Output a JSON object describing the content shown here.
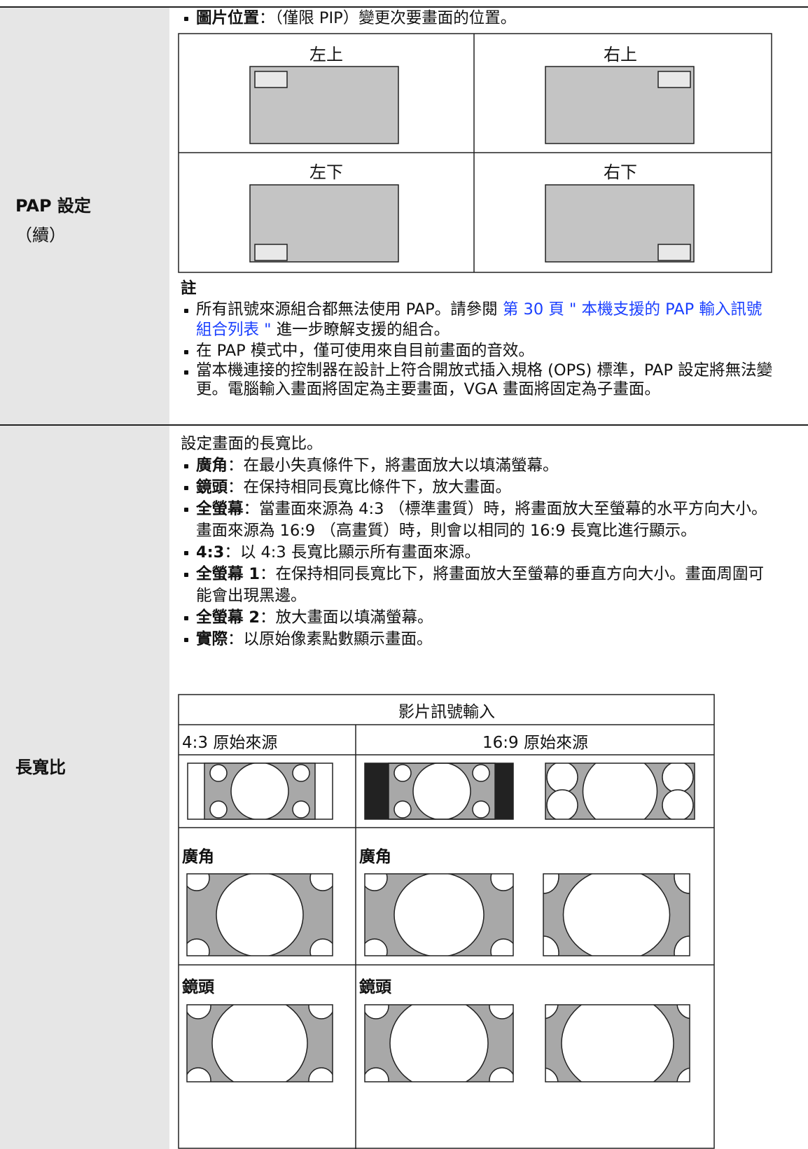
{
  "pap": {
    "label": "PAP 設定",
    "label_cont": "（續）",
    "item": {
      "term": "圖片位置",
      "text": "：（僅限 PIP）變更次要畫面的位置。"
    },
    "positions": [
      "左上",
      "右上",
      "左下",
      "右下"
    ],
    "note_title": "註",
    "notes": [
      {
        "before": "所有訊號來源組合都無法使用 PAP。請參閱 ",
        "link": "第 30 頁 \" 本機支援的 PAP 輸入訊號組合列表 \"",
        "after": " 進一步瞭解支援的組合。"
      },
      {
        "before": "在 PAP 模式中，僅可使用來自目前畫面的音效。"
      },
      {
        "before": "當本機連接的控制器在設計上符合開放式插入規格 (OPS) 標準，PAP 設定將無法變更。電腦輸入畫面將固定為主要畫面，VGA 畫面將固定為子畫面。"
      }
    ]
  },
  "aspect": {
    "label": "長寬比",
    "intro": "設定畫面的長寬比。",
    "items": [
      {
        "term": "廣角",
        "text": "：在最小失真條件下，將畫面放大以填滿螢幕。"
      },
      {
        "term": "鏡頭",
        "text": "：在保持相同長寬比條件下，放大畫面。"
      },
      {
        "term": "全螢幕",
        "text": "：當畫面來源為 4:3 （標準畫質）時，將畫面放大至螢幕的水平方向大小。畫面來源為 16:9 （高畫質）時，則會以相同的 16:9 長寬比進行顯示。"
      },
      {
        "term": "4:3",
        "text": "：以 4:3 長寬比顯示所有畫面來源。"
      },
      {
        "term": "全螢幕 1",
        "text": "：在保持相同長寬比下，將畫面放大至螢幕的垂直方向大小。畫面周圍可能會出現黑邊。"
      },
      {
        "term": "全螢幕 2",
        "text": "：放大畫面以填滿螢幕。"
      },
      {
        "term": "實際",
        "text": "：以原始像素點數顯示畫面。"
      }
    ],
    "table": {
      "header": "影片訊號輸入",
      "col1": "4:3 原始來源",
      "col2": "16:9 原始來源",
      "modes": [
        {
          "left": "廣角",
          "right": "廣角"
        },
        {
          "left": "鏡頭",
          "right": "鏡頭"
        }
      ]
    }
  }
}
